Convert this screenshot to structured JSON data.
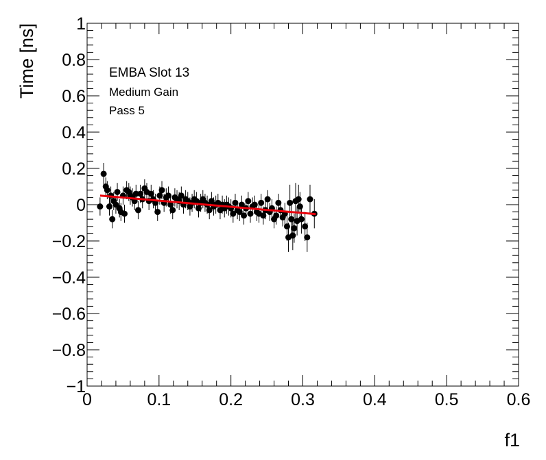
{
  "chart_data": {
    "type": "scatter",
    "title": "",
    "xlabel": "f1",
    "ylabel": "Time [ns]",
    "xlim": [
      0,
      0.6
    ],
    "ylim": [
      -1,
      1
    ],
    "x_ticks": [
      "0",
      "0.1",
      "0.2",
      "0.3",
      "0.4",
      "0.5",
      "0.6"
    ],
    "y_ticks": [
      "−1",
      "−0.8",
      "−0.6",
      "−0.4",
      "−0.2",
      "0",
      "0.2",
      "0.4",
      "0.6",
      "0.8",
      "1"
    ],
    "annotations": [
      "EMBA Slot 13",
      "Medium Gain",
      "Pass 5"
    ],
    "grid": false,
    "marker_color": "#000000",
    "fit_color": "#e8000b",
    "fit_line": {
      "x": [
        0.018,
        0.318
      ],
      "y": [
        0.05,
        -0.052
      ]
    },
    "series": [
      {
        "x": [
          0.018,
          0.023,
          0.026,
          0.028,
          0.031,
          0.033,
          0.035,
          0.037,
          0.04,
          0.042,
          0.045,
          0.047,
          0.05,
          0.052,
          0.055,
          0.058,
          0.06,
          0.063,
          0.066,
          0.068,
          0.071,
          0.074,
          0.077,
          0.08,
          0.083,
          0.086,
          0.089,
          0.092,
          0.095,
          0.098,
          0.101,
          0.104,
          0.107,
          0.11,
          0.113,
          0.116,
          0.119,
          0.122,
          0.125,
          0.128,
          0.131,
          0.134,
          0.137,
          0.14,
          0.143,
          0.146,
          0.149,
          0.152,
          0.155,
          0.158,
          0.161,
          0.164,
          0.167,
          0.17,
          0.173,
          0.176,
          0.179,
          0.182,
          0.185,
          0.188,
          0.191,
          0.194,
          0.197,
          0.2,
          0.203,
          0.206,
          0.209,
          0.212,
          0.215,
          0.218,
          0.221,
          0.224,
          0.227,
          0.23,
          0.233,
          0.236,
          0.239,
          0.242,
          0.245,
          0.248,
          0.251,
          0.254,
          0.257,
          0.26,
          0.263,
          0.266,
          0.269,
          0.272,
          0.275,
          0.278,
          0.28,
          0.282,
          0.284,
          0.286,
          0.288,
          0.29,
          0.292,
          0.294,
          0.296,
          0.298,
          0.303,
          0.306,
          0.31,
          0.316
        ],
        "y": [
          -0.01,
          0.17,
          0.1,
          0.08,
          -0.01,
          0.05,
          -0.08,
          0.02,
          0.0,
          0.07,
          -0.02,
          -0.04,
          0.05,
          -0.05,
          0.08,
          0.07,
          0.05,
          0.04,
          0.02,
          0.06,
          -0.03,
          0.06,
          0.03,
          0.09,
          0.07,
          0.02,
          0.06,
          0.03,
          0.01,
          -0.04,
          0.05,
          0.08,
          0.01,
          0.04,
          0.05,
          0.0,
          -0.03,
          0.04,
          0.03,
          0.02,
          0.05,
          0.0,
          0.03,
          0.02,
          -0.01,
          0.01,
          0.03,
          0.02,
          -0.02,
          0.01,
          0.03,
          0.01,
          0.0,
          -0.03,
          0.02,
          -0.01,
          0.0,
          0.01,
          -0.03,
          0.0,
          -0.02,
          0.0,
          -0.01,
          -0.02,
          -0.05,
          0.01,
          -0.03,
          -0.04,
          0.0,
          -0.06,
          -0.02,
          0.02,
          -0.05,
          -0.01,
          0.0,
          -0.04,
          -0.05,
          0.01,
          -0.06,
          -0.03,
          0.03,
          -0.04,
          -0.02,
          -0.08,
          -0.06,
          0.01,
          -0.03,
          -0.07,
          -0.05,
          -0.12,
          -0.18,
          0.01,
          -0.08,
          -0.17,
          -0.13,
          0.02,
          -0.09,
          0.03,
          -0.01,
          -0.08,
          -0.12,
          -0.18,
          0.03,
          -0.05
        ],
        "err": [
          0.05,
          0.06,
          0.05,
          0.05,
          0.05,
          0.05,
          0.05,
          0.05,
          0.05,
          0.05,
          0.05,
          0.05,
          0.05,
          0.05,
          0.05,
          0.05,
          0.05,
          0.05,
          0.05,
          0.05,
          0.05,
          0.05,
          0.05,
          0.05,
          0.05,
          0.05,
          0.05,
          0.05,
          0.05,
          0.05,
          0.05,
          0.05,
          0.05,
          0.05,
          0.05,
          0.05,
          0.05,
          0.05,
          0.05,
          0.05,
          0.05,
          0.05,
          0.05,
          0.05,
          0.05,
          0.05,
          0.05,
          0.05,
          0.05,
          0.05,
          0.05,
          0.05,
          0.05,
          0.05,
          0.05,
          0.05,
          0.05,
          0.05,
          0.05,
          0.05,
          0.05,
          0.05,
          0.05,
          0.05,
          0.05,
          0.05,
          0.05,
          0.05,
          0.05,
          0.05,
          0.05,
          0.05,
          0.05,
          0.05,
          0.05,
          0.05,
          0.05,
          0.05,
          0.05,
          0.05,
          0.05,
          0.05,
          0.05,
          0.05,
          0.05,
          0.05,
          0.05,
          0.05,
          0.06,
          0.08,
          0.08,
          0.1,
          0.08,
          0.08,
          0.08,
          0.1,
          0.08,
          0.08,
          0.08,
          0.08,
          0.08,
          0.08,
          0.08,
          0.08
        ]
      }
    ]
  }
}
